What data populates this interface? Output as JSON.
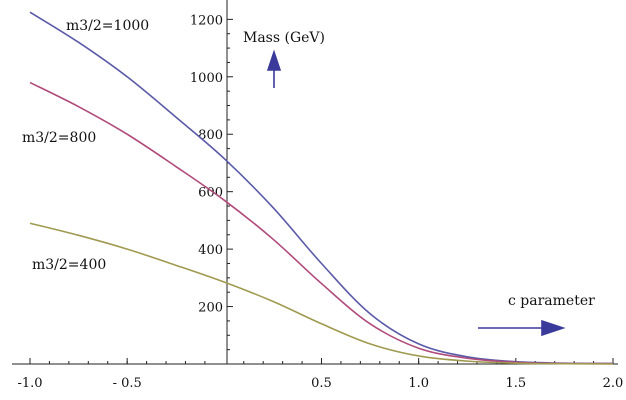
{
  "chart_data": {
    "type": "line",
    "title": "",
    "xlabel": "c parameter",
    "ylabel": "Mass (GeV)",
    "xlim": [
      -1.0,
      2.0
    ],
    "ylim": [
      0,
      1250
    ],
    "x_ticks": [
      -1.0,
      -0.5,
      0.5,
      1.0,
      1.5,
      2.0
    ],
    "x_tick_labels": [
      "-1.0",
      "- 0.5",
      "0.5",
      "1.0",
      "1.5",
      "2.0"
    ],
    "y_ticks": [
      200,
      400,
      600,
      800,
      1000,
      1200
    ],
    "y_tick_labels": [
      "200",
      "400",
      "600",
      "800",
      "1000",
      "1200"
    ],
    "series": [
      {
        "name": "m3/2=1000",
        "color": "#5a5aa8",
        "x": [
          -1.0,
          -0.75,
          -0.5,
          -0.25,
          0.0,
          0.25,
          0.5,
          0.75,
          1.0,
          1.25,
          1.5,
          1.75,
          2.0
        ],
        "values": [
          1225,
          1120,
          1000,
          860,
          715,
          545,
          350,
          175,
          70,
          25,
          8,
          3,
          2
        ]
      },
      {
        "name": "m3/2=800",
        "color": "#b04a7a",
        "x": [
          -1.0,
          -0.75,
          -0.5,
          -0.25,
          0.0,
          0.25,
          0.5,
          0.75,
          1.0,
          1.25,
          1.5,
          1.75,
          2.0
        ],
        "values": [
          980,
          896,
          800,
          688,
          570,
          435,
          280,
          140,
          55,
          20,
          6,
          2,
          1
        ]
      },
      {
        "name": "m3/2=400",
        "color": "#a09a50",
        "x": [
          -1.0,
          -0.75,
          -0.5,
          -0.25,
          0.0,
          0.25,
          0.5,
          0.75,
          1.0,
          1.25,
          1.5,
          1.75,
          2.0
        ],
        "values": [
          490,
          448,
          400,
          344,
          285,
          218,
          140,
          70,
          28,
          10,
          3,
          1,
          0
        ]
      }
    ],
    "annotation_color": "#3a3a9a"
  }
}
